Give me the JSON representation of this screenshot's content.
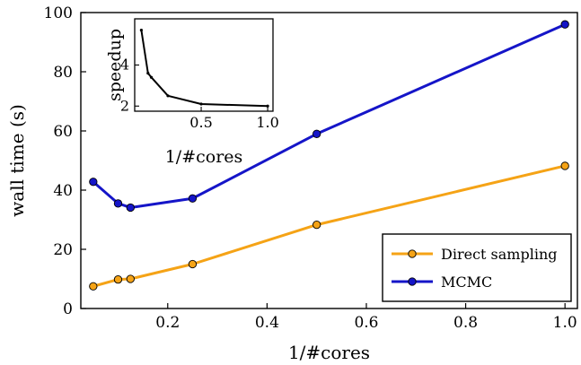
{
  "chart_data": {
    "type": "line",
    "xlabel": "1/#cores",
    "ylabel": "wall time (s)",
    "xlim": [
      0.025,
      1.025
    ],
    "ylim": [
      0,
      100
    ],
    "xticks": [
      0.2,
      0.4,
      0.6,
      0.8,
      1.0
    ],
    "xtick_labels": [
      "0.2",
      "0.4",
      "0.6",
      "0.8",
      "1.0"
    ],
    "yticks": [
      0,
      20,
      40,
      60,
      80,
      100
    ],
    "ytick_labels": [
      "0",
      "20",
      "40",
      "60",
      "80",
      "100"
    ],
    "grid": false,
    "legend_position": "lower-right",
    "series": [
      {
        "name": "Direct sampling",
        "color": "#f5a316",
        "x": [
          0.05,
          0.1,
          0.125,
          0.25,
          0.5,
          1.0
        ],
        "y": [
          7.5,
          9.8,
          10.0,
          15.0,
          28.3,
          48.2
        ]
      },
      {
        "name": "MCMC",
        "color": "#1515c8",
        "x": [
          0.05,
          0.1,
          0.125,
          0.25,
          0.5,
          1.0
        ],
        "y": [
          42.8,
          35.5,
          34.1,
          37.2,
          59.0,
          96.0
        ]
      }
    ],
    "inset": {
      "type": "line",
      "xlabel": "1/#cores",
      "ylabel": "speedup",
      "xlim": [
        0.0,
        1.04
      ],
      "ylim": [
        1.75,
        6.25
      ],
      "xticks": [
        0.5,
        1.0
      ],
      "xtick_labels": [
        "0.5",
        "1.0"
      ],
      "yticks": [
        2,
        4
      ],
      "ytick_labels": [
        "2",
        "4"
      ],
      "color": "#000000",
      "x": [
        0.05,
        0.1,
        0.125,
        0.25,
        0.5,
        1.0
      ],
      "y": [
        5.7,
        3.6,
        3.4,
        2.5,
        2.1,
        2.0
      ]
    }
  }
}
